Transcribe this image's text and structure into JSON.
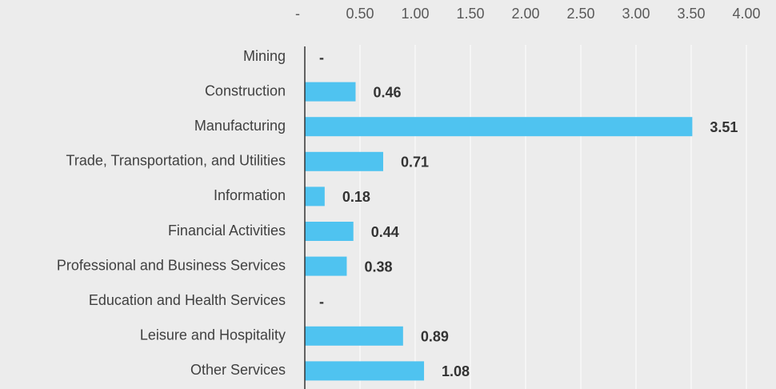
{
  "chart_data": {
    "type": "bar",
    "orientation": "horizontal",
    "categories": [
      "Mining",
      "Construction",
      "Manufacturing",
      "Trade, Transportation, and Utilities",
      "Information",
      "Financial Activities",
      "Professional and Business Services",
      "Education and Health Services",
      "Leisure and Hospitality",
      "Other Services"
    ],
    "values": [
      0,
      0.46,
      3.51,
      0.71,
      0.18,
      0.44,
      0.38,
      0,
      0.89,
      1.08
    ],
    "value_labels": [
      "-",
      "0.46",
      "3.51",
      "0.71",
      "0.18",
      "0.44",
      "0.38",
      "-",
      "0.89",
      "1.08"
    ],
    "color": "#4fc3f0",
    "xlim": [
      0,
      4
    ],
    "xticks": [
      {
        "value": 0,
        "label": "-"
      },
      {
        "value": 0.5,
        "label": "0.50"
      },
      {
        "value": 1,
        "label": "1.00"
      },
      {
        "value": 1.5,
        "label": "1.50"
      },
      {
        "value": 2,
        "label": "2.00"
      },
      {
        "value": 2.5,
        "label": "2.50"
      },
      {
        "value": 3,
        "label": "3.00"
      },
      {
        "value": 3.5,
        "label": "3.50"
      },
      {
        "value": 4,
        "label": "4.00"
      }
    ],
    "grid": true
  }
}
